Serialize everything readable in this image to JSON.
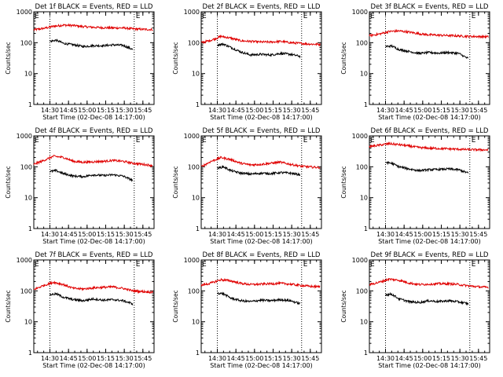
{
  "page": {
    "background": "#ffffff",
    "axis_color": "#000000",
    "events_color": "#000000",
    "lld_color": "#e00000"
  },
  "chart_data": [
    {
      "type": "line",
      "title": "Det 1f BLACK = Events, RED = LLD",
      "xlabel": "Start Time (02-Dec-08 14:17:00)",
      "ylabel": "Counts/sec",
      "x_ticks": [
        "14:30",
        "14:45",
        "15:00",
        "15:15",
        "15:30",
        "15:45"
      ],
      "x_tick_minutes": [
        13,
        28,
        43,
        58,
        73,
        88
      ],
      "xlim_minutes": [
        0,
        97
      ],
      "ylim": [
        1,
        1000
      ],
      "yscale": "log",
      "y_ticks": [
        "1",
        "10",
        "100",
        "1000"
      ],
      "y_tick_values": [
        1,
        10,
        100,
        1000
      ],
      "markers": {
        "lines_minutes": [
          13,
          81
        ],
        "labels": [
          "E",
          "E"
        ]
      },
      "series": [
        {
          "name": "LLD",
          "color": "#e00000",
          "x": [
            0,
            8,
            16,
            24,
            32,
            40,
            48,
            56,
            64,
            72,
            80,
            88,
            96
          ],
          "y": [
            260,
            290,
            340,
            370,
            360,
            330,
            315,
            305,
            300,
            300,
            280,
            270,
            265
          ]
        },
        {
          "name": "Events",
          "color": "#000000",
          "x": [
            13,
            18,
            24,
            32,
            40,
            48,
            56,
            64,
            72,
            80
          ],
          "y": [
            110,
            120,
            95,
            85,
            75,
            80,
            80,
            85,
            82,
            60
          ]
        }
      ]
    },
    {
      "type": "line",
      "title": "Det 2f BLACK = Events, RED = LLD",
      "xlabel": "Start Time (02-Dec-08 14:17:00)",
      "ylabel": "Counts/sec",
      "x_ticks": [
        "14:30",
        "14:45",
        "15:00",
        "15:15",
        "15:30",
        "15:45"
      ],
      "x_tick_minutes": [
        13,
        28,
        43,
        58,
        73,
        88
      ],
      "xlim_minutes": [
        0,
        97
      ],
      "ylim": [
        1,
        1000
      ],
      "yscale": "log",
      "y_ticks": [
        "1",
        "10",
        "100",
        "1000"
      ],
      "y_tick_values": [
        1,
        10,
        100,
        1000
      ],
      "markers": {
        "lines_minutes": [
          13,
          81
        ],
        "labels": [
          "E",
          "E"
        ]
      },
      "series": [
        {
          "name": "LLD",
          "color": "#e00000",
          "x": [
            0,
            8,
            16,
            24,
            32,
            40,
            48,
            56,
            64,
            72,
            80,
            88,
            96
          ],
          "y": [
            100,
            120,
            160,
            140,
            115,
            110,
            105,
            105,
            110,
            100,
            95,
            90,
            88
          ]
        },
        {
          "name": "Events",
          "color": "#000000",
          "x": [
            13,
            18,
            24,
            32,
            40,
            48,
            56,
            64,
            72,
            80
          ],
          "y": [
            85,
            90,
            70,
            50,
            40,
            42,
            40,
            45,
            42,
            36
          ]
        }
      ]
    },
    {
      "type": "line",
      "title": "Det 3f BLACK = Events, RED = LLD",
      "xlabel": "Start Time (02-Dec-08 14:17:00)",
      "ylabel": "Counts/sec",
      "x_ticks": [
        "14:30",
        "14:45",
        "15:00",
        "15:15",
        "15:30",
        "15:45"
      ],
      "x_tick_minutes": [
        13,
        28,
        43,
        58,
        73,
        88
      ],
      "xlim_minutes": [
        0,
        97
      ],
      "ylim": [
        1,
        1000
      ],
      "yscale": "log",
      "y_ticks": [
        "1",
        "10",
        "100",
        "1000"
      ],
      "y_tick_values": [
        1,
        10,
        100,
        1000
      ],
      "markers": {
        "lines_minutes": [
          13,
          81
        ],
        "labels": [
          "E",
          "E"
        ]
      },
      "series": [
        {
          "name": "LLD",
          "color": "#e00000",
          "x": [
            0,
            8,
            16,
            24,
            32,
            40,
            48,
            56,
            64,
            72,
            80,
            88,
            96
          ],
          "y": [
            170,
            190,
            230,
            240,
            220,
            195,
            180,
            175,
            170,
            165,
            160,
            158,
            155
          ]
        },
        {
          "name": "Events",
          "color": "#000000",
          "x": [
            13,
            18,
            24,
            32,
            40,
            48,
            56,
            64,
            72,
            80
          ],
          "y": [
            75,
            78,
            60,
            52,
            45,
            48,
            46,
            48,
            45,
            30
          ]
        }
      ]
    },
    {
      "type": "line",
      "title": "Det 4f BLACK = Events, RED = LLD",
      "xlabel": "Start Time (02-Dec-08 14:17:00)",
      "ylabel": "Counts/sec",
      "x_ticks": [
        "14:30",
        "14:45",
        "15:00",
        "15:15",
        "15:30",
        "15:45"
      ],
      "x_tick_minutes": [
        13,
        28,
        43,
        58,
        73,
        88
      ],
      "xlim_minutes": [
        0,
        97
      ],
      "ylim": [
        1,
        1000
      ],
      "yscale": "log",
      "y_ticks": [
        "1",
        "10",
        "100",
        "1000"
      ],
      "y_tick_values": [
        1,
        10,
        100,
        1000
      ],
      "markers": {
        "lines_minutes": [
          13,
          81
        ],
        "labels": [
          "E",
          "E"
        ]
      },
      "series": [
        {
          "name": "LLD",
          "color": "#e00000",
          "x": [
            0,
            8,
            16,
            24,
            32,
            40,
            48,
            56,
            64,
            72,
            80,
            88,
            96
          ],
          "y": [
            120,
            160,
            220,
            200,
            150,
            140,
            145,
            150,
            160,
            150,
            130,
            120,
            110
          ]
        },
        {
          "name": "Events",
          "color": "#000000",
          "x": [
            13,
            18,
            24,
            32,
            40,
            48,
            56,
            64,
            72,
            80
          ],
          "y": [
            70,
            75,
            60,
            50,
            48,
            55,
            52,
            55,
            50,
            36
          ]
        }
      ]
    },
    {
      "type": "line",
      "title": "Det 5f BLACK = Events, RED = LLD",
      "xlabel": "Start Time (02-Dec-08 14:17:00)",
      "ylabel": "Counts/sec",
      "x_ticks": [
        "14:30",
        "14:45",
        "15:00",
        "15:15",
        "15:30",
        "15:45"
      ],
      "x_tick_minutes": [
        13,
        28,
        43,
        58,
        73,
        88
      ],
      "xlim_minutes": [
        0,
        97
      ],
      "ylim": [
        1,
        1000
      ],
      "yscale": "log",
      "y_ticks": [
        "1",
        "10",
        "100",
        "1000"
      ],
      "y_tick_values": [
        1,
        10,
        100,
        1000
      ],
      "markers": {
        "lines_minutes": [
          13,
          81
        ],
        "labels": [
          "E",
          "E"
        ]
      },
      "series": [
        {
          "name": "LLD",
          "color": "#e00000",
          "x": [
            0,
            8,
            16,
            24,
            32,
            40,
            48,
            56,
            64,
            72,
            80,
            88,
            96
          ],
          "y": [
            100,
            150,
            200,
            170,
            130,
            115,
            120,
            130,
            140,
            120,
            105,
            98,
            95
          ]
        },
        {
          "name": "Events",
          "color": "#000000",
          "x": [
            13,
            18,
            24,
            32,
            40,
            48,
            56,
            64,
            72,
            80
          ],
          "y": [
            90,
            100,
            75,
            62,
            58,
            62,
            60,
            65,
            62,
            55
          ]
        }
      ]
    },
    {
      "type": "line",
      "title": "Det 6f BLACK = Events, RED = LLD",
      "xlabel": "Start Time (02-Dec-08 14:17:00)",
      "ylabel": "Counts/sec",
      "x_ticks": [
        "14:30",
        "14:45",
        "15:00",
        "15:15",
        "15:30",
        "15:45"
      ],
      "x_tick_minutes": [
        13,
        28,
        43,
        58,
        73,
        88
      ],
      "xlim_minutes": [
        0,
        97
      ],
      "ylim": [
        1,
        1000
      ],
      "yscale": "log",
      "y_ticks": [
        "1",
        "10",
        "100",
        "1000"
      ],
      "y_tick_values": [
        1,
        10,
        100,
        1000
      ],
      "markers": {
        "lines_minutes": [
          13,
          81
        ],
        "labels": [
          "E",
          "E"
        ]
      },
      "series": [
        {
          "name": "LLD",
          "color": "#e00000",
          "x": [
            0,
            8,
            16,
            24,
            32,
            40,
            48,
            56,
            64,
            72,
            80,
            88,
            96
          ],
          "y": [
            450,
            500,
            560,
            520,
            470,
            420,
            400,
            390,
            380,
            370,
            360,
            355,
            350
          ]
        },
        {
          "name": "Events",
          "color": "#000000",
          "x": [
            13,
            18,
            24,
            32,
            40,
            48,
            56,
            64,
            72,
            80
          ],
          "y": [
            140,
            130,
            100,
            85,
            75,
            80,
            82,
            85,
            80,
            62
          ]
        }
      ]
    },
    {
      "type": "line",
      "title": "Det 7f BLACK = Events, RED = LLD",
      "xlabel": "Start Time (02-Dec-08 14:17:00)",
      "ylabel": "Counts/sec",
      "x_ticks": [
        "14:30",
        "14:45",
        "15:00",
        "15:15",
        "15:30",
        "15:45"
      ],
      "x_tick_minutes": [
        13,
        28,
        43,
        58,
        73,
        88
      ],
      "xlim_minutes": [
        0,
        97
      ],
      "ylim": [
        1,
        1000
      ],
      "yscale": "log",
      "y_ticks": [
        "1",
        "10",
        "100",
        "1000"
      ],
      "y_tick_values": [
        1,
        10,
        100,
        1000
      ],
      "markers": {
        "lines_minutes": [
          13,
          81
        ],
        "labels": [
          "E",
          "E"
        ]
      },
      "series": [
        {
          "name": "LLD",
          "color": "#e00000",
          "x": [
            0,
            8,
            16,
            24,
            32,
            40,
            48,
            56,
            64,
            72,
            80,
            88,
            96
          ],
          "y": [
            110,
            150,
            190,
            160,
            120,
            115,
            125,
            130,
            135,
            120,
            100,
            95,
            90
          ]
        },
        {
          "name": "Events",
          "color": "#000000",
          "x": [
            13,
            18,
            24,
            32,
            40,
            48,
            56,
            64,
            72,
            80
          ],
          "y": [
            75,
            80,
            62,
            52,
            48,
            55,
            50,
            52,
            48,
            38
          ]
        }
      ]
    },
    {
      "type": "line",
      "title": "Det 8f BLACK = Events, RED = LLD",
      "xlabel": "Start Time (02-Dec-08 14:17:00)",
      "ylabel": "Counts/sec",
      "x_ticks": [
        "14:30",
        "14:45",
        "15:00",
        "15:15",
        "15:30",
        "15:45"
      ],
      "x_tick_minutes": [
        13,
        28,
        43,
        58,
        73,
        88
      ],
      "xlim_minutes": [
        0,
        97
      ],
      "ylim": [
        1,
        1000
      ],
      "yscale": "log",
      "y_ticks": [
        "1",
        "10",
        "100",
        "1000"
      ],
      "y_tick_values": [
        1,
        10,
        100,
        1000
      ],
      "markers": {
        "lines_minutes": [
          13,
          81
        ],
        "labels": [
          "E",
          "E"
        ]
      },
      "series": [
        {
          "name": "LLD",
          "color": "#e00000",
          "x": [
            0,
            8,
            16,
            24,
            32,
            40,
            48,
            56,
            64,
            72,
            80,
            88,
            96
          ],
          "y": [
            150,
            180,
            230,
            210,
            175,
            160,
            165,
            170,
            175,
            165,
            150,
            140,
            135
          ]
        },
        {
          "name": "Events",
          "color": "#000000",
          "x": [
            13,
            18,
            24,
            32,
            40,
            48,
            56,
            64,
            72,
            80
          ],
          "y": [
            85,
            80,
            58,
            48,
            45,
            50,
            48,
            52,
            48,
            38
          ]
        }
      ]
    },
    {
      "type": "line",
      "title": "Det 9f BLACK = Events, RED = LLD",
      "xlabel": "Start Time (02-Dec-08 14:17:00)",
      "ylabel": "Counts/sec",
      "x_ticks": [
        "14:30",
        "14:45",
        "15:00",
        "15:15",
        "15:30",
        "15:45"
      ],
      "x_tick_minutes": [
        13,
        28,
        43,
        58,
        73,
        88
      ],
      "xlim_minutes": [
        0,
        97
      ],
      "ylim": [
        1,
        1000
      ],
      "yscale": "log",
      "y_ticks": [
        "1",
        "10",
        "100",
        "1000"
      ],
      "y_tick_values": [
        1,
        10,
        100,
        1000
      ],
      "markers": {
        "lines_minutes": [
          13,
          81
        ],
        "labels": [
          "E",
          "E"
        ]
      },
      "series": [
        {
          "name": "LLD",
          "color": "#e00000",
          "x": [
            0,
            8,
            16,
            24,
            32,
            40,
            48,
            56,
            64,
            72,
            80,
            88,
            96
          ],
          "y": [
            160,
            190,
            240,
            220,
            180,
            160,
            165,
            170,
            170,
            160,
            145,
            135,
            130
          ]
        },
        {
          "name": "Events",
          "color": "#000000",
          "x": [
            13,
            18,
            24,
            32,
            40,
            48,
            56,
            64,
            72,
            80
          ],
          "y": [
            75,
            78,
            55,
            45,
            42,
            48,
            45,
            48,
            44,
            38
          ]
        }
      ]
    }
  ]
}
